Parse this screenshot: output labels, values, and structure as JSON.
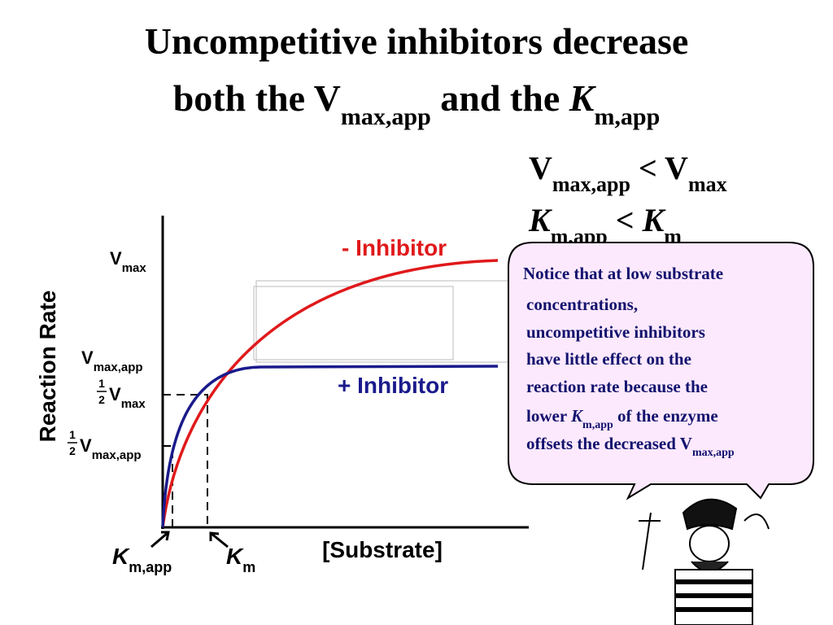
{
  "title": {
    "line1": "Uncompetitive  inhibitors decrease",
    "line2": [
      "both the V",
      "max,app",
      " and the ",
      "K",
      "m,app"
    ]
  },
  "relations": [
    [
      "V",
      "max,app",
      "  < V",
      "max"
    ],
    [
      "K",
      "m,app",
      "  < ",
      "K",
      "m"
    ]
  ],
  "graph": {
    "y_axis_label": "Reaction Rate",
    "x_axis_label": "[Substrate]",
    "vmax": [
      "V",
      "max"
    ],
    "vmax_app": [
      "V",
      "max,app"
    ],
    "half_vmax": [
      "1",
      "2",
      "V",
      "max"
    ],
    "half_vmax_app": [
      "1",
      "2",
      "V",
      "max,app"
    ],
    "minus_inhibitor": "- Inhibitor",
    "plus_inhibitor": "+ Inhibitor",
    "km_app": [
      "K",
      "m,app"
    ],
    "km": [
      "K",
      "m"
    ]
  },
  "callout": {
    "lines": [
      [
        "Notice that at low substrate"
      ],
      [
        "concentrations,"
      ],
      [
        "uncompetitive inhibitors"
      ],
      [
        "have little effect on the"
      ],
      [
        "reaction rate because the"
      ],
      [
        "lower ",
        "K",
        "m,app",
        " of the enzyme"
      ],
      [
        "offsets the decreased V",
        "max,app"
      ]
    ]
  }
}
